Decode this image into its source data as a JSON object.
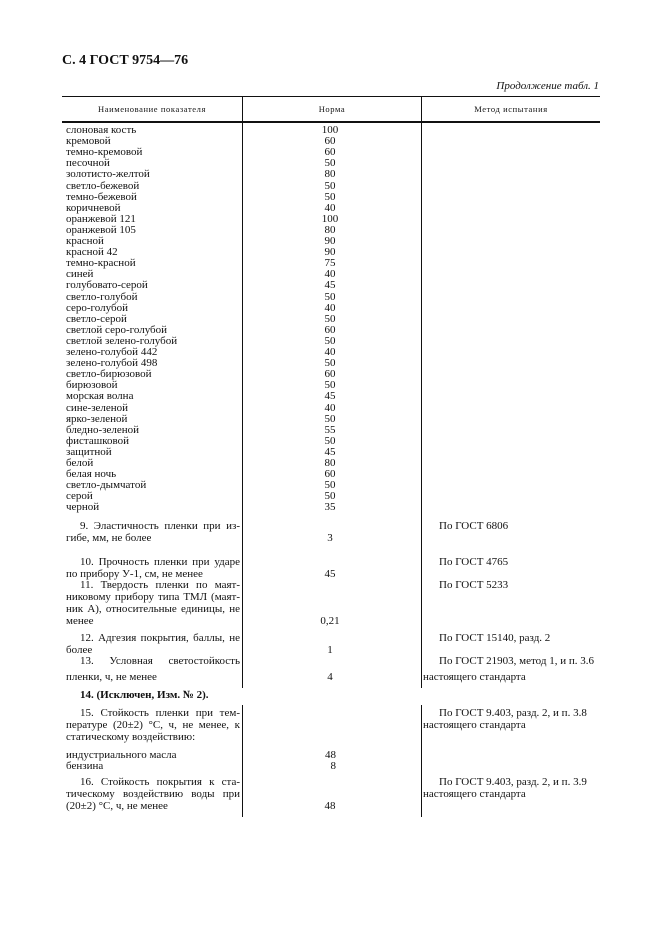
{
  "header": {
    "page_title": "С. 4 ГОСТ 9754—76",
    "continuation": "Продолжение табл. 1"
  },
  "table": {
    "columns": [
      "Наименование показателя",
      "Норма",
      "Метод испытания"
    ],
    "colors": [
      {
        "name": "слоновая кость",
        "value": "100"
      },
      {
        "name": "кремовой",
        "value": "60"
      },
      {
        "name": "темно-кремовой",
        "value": "60"
      },
      {
        "name": "песочной",
        "value": "50"
      },
      {
        "name": "золотисто-желтой",
        "value": "80"
      },
      {
        "name": "светло-бежевой",
        "value": "50"
      },
      {
        "name": "темно-бежевой",
        "value": "50"
      },
      {
        "name": "коричневой",
        "value": "40"
      },
      {
        "name": "оранжевой 121",
        "value": "100"
      },
      {
        "name": "оранжевой 105",
        "value": "80"
      },
      {
        "name": "красной",
        "value": "90"
      },
      {
        "name": "красной 42",
        "value": "90"
      },
      {
        "name": "темно-красной",
        "value": "75"
      },
      {
        "name": "синей",
        "value": "40"
      },
      {
        "name": "голубовато-серой",
        "value": "45"
      },
      {
        "name": "светло-голубой",
        "value": "50"
      },
      {
        "name": "серо-голубой",
        "value": "40"
      },
      {
        "name": "светло-серой",
        "value": "50"
      },
      {
        "name": "светлой серо-голубой",
        "value": "60"
      },
      {
        "name": "светлой зелено-голубой",
        "value": "50"
      },
      {
        "name": "зелено-голубой 442",
        "value": "40"
      },
      {
        "name": "зелено-голубой 498",
        "value": "50"
      },
      {
        "name": "светло-бирюзовой",
        "value": "60"
      },
      {
        "name": "бирюзовой",
        "value": "50"
      },
      {
        "name": "морская волна",
        "value": "45"
      },
      {
        "name": "сине-зеленой",
        "value": "40"
      },
      {
        "name": "ярко-зеленой",
        "value": "50"
      },
      {
        "name": "бледно-зеленой",
        "value": "55"
      },
      {
        "name": "фисташковой",
        "value": "50"
      },
      {
        "name": "защитной",
        "value": "45"
      },
      {
        "name": "белой",
        "value": "80"
      },
      {
        "name": "белая ночь",
        "value": "60"
      },
      {
        "name": "светло-дымчатой",
        "value": "50"
      },
      {
        "name": "серой",
        "value": "50"
      },
      {
        "name": "черной",
        "value": "35"
      }
    ],
    "items": [
      {
        "lines": [
          "9. Эластичность пленки при из-",
          "гибе, мм, не более"
        ],
        "value": "3",
        "method": [
          "По ГОСТ 6806"
        ]
      },
      {
        "lines": [
          "10. Прочность пленки при ударе",
          "по прибору У-1, см, не менее"
        ],
        "value": "45",
        "method": [
          "По ГОСТ 4765"
        ]
      },
      {
        "lines": [
          "11. Твердость пленки по маят-",
          "никовому прибору типа ТМЛ (маят-",
          "ник А), относительные единицы, не",
          "менее"
        ],
        "value": "0,21",
        "method": [
          "По ГОСТ 5233"
        ]
      },
      {
        "lines": [
          "12. Адгезия покрытия, баллы, не",
          "более"
        ],
        "value": "1",
        "method": [
          "По ГОСТ 15140, разд. 2"
        ]
      },
      {
        "lines": [
          "13. Условная светостойкость",
          "пленки, ч, не менее"
        ],
        "value": "4",
        "method": [
          "По ГОСТ 21903, метод 1, и п. 3.6",
          "настоящего стандарта"
        ]
      },
      {
        "excluded": "14. (Исключен, Изм. № 2)."
      },
      {
        "lines": [
          "15. Стойкость пленки при тем-",
          "пературе (20±2) °С, ч, не менее, к",
          "статическому воздействию:"
        ],
        "method": [
          "По ГОСТ 9.403, разд. 2, и п. 3.8",
          "настоящего стандарта"
        ],
        "sub": [
          {
            "name": "индустриального масла",
            "value": "48"
          },
          {
            "name": "бензина",
            "value": "8"
          }
        ]
      },
      {
        "lines": [
          "16. Стойкость покрытия к ста-",
          "тическому воздействию воды при",
          "(20±2) °С, ч, не менее"
        ],
        "value": "48",
        "method": [
          "По ГОСТ 9.403, разд. 2, и п. 3.9",
          "настоящего стандарта"
        ]
      }
    ]
  }
}
